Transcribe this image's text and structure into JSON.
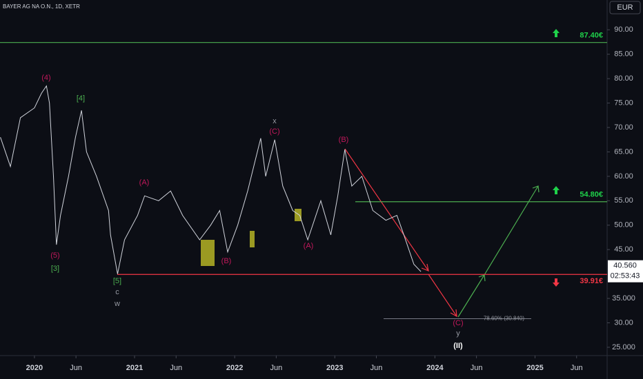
{
  "chart_data": {
    "type": "line",
    "title": "BAYER AG NA O.N., 1D, XETR",
    "currency": "EUR",
    "x": [
      2019.66,
      2019.76,
      2019.86,
      2020.0,
      2020.07,
      2020.12,
      2020.15,
      2020.19,
      2020.22,
      2020.26,
      2020.34,
      2020.41,
      2020.47,
      2020.52,
      2020.62,
      2020.74,
      2020.76,
      2020.83,
      2020.9,
      2021.03,
      2021.1,
      2021.24,
      2021.36,
      2021.48,
      2021.65,
      2021.76,
      2021.85,
      2021.93,
      2022.03,
      2022.13,
      2022.26,
      2022.31,
      2022.4,
      2022.48,
      2022.58,
      2022.65,
      2022.73,
      2022.86,
      2022.96,
      2023.03,
      2023.1,
      2023.17,
      2023.27,
      2023.38,
      2023.51,
      2023.62,
      2023.69,
      2023.79,
      2023.86
    ],
    "series": [
      {
        "color": "#d1d4dc",
        "values": [
          68,
          62,
          72,
          74,
          77,
          78.5,
          75,
          60,
          46,
          52,
          60,
          68,
          73.5,
          65,
          60,
          53,
          48,
          40,
          47,
          52,
          56,
          55,
          57,
          52,
          47,
          50,
          53,
          44.5,
          50,
          57,
          67.8,
          60,
          67.5,
          58,
          53,
          52,
          47,
          55,
          48,
          56,
          65.5,
          58,
          60,
          53,
          51,
          52,
          48,
          42,
          40.5
        ]
      }
    ],
    "xlim": [
      2019.656,
      2025.72
    ],
    "xticks": [
      2020,
      {
        "value": 2020.415,
        "label": "Jun"
      },
      2021,
      {
        "value": 2021.415,
        "label": "Jun"
      },
      2022,
      {
        "value": 2022.415,
        "label": "Jun"
      },
      2023,
      {
        "value": 2023.415,
        "label": "Jun"
      },
      2024,
      {
        "value": 2024.415,
        "label": "Jun"
      },
      2025,
      {
        "value": 2025.415,
        "label": "Jun"
      }
    ],
    "ylim": [
      23.3,
      96.1
    ],
    "yticks": [
      {
        "value": 90,
        "label": "90.00"
      },
      {
        "value": 85,
        "label": "85.00"
      },
      {
        "value": 80,
        "label": "80.00"
      },
      {
        "value": 75,
        "label": "75.00"
      },
      {
        "value": 70,
        "label": "70.00"
      },
      {
        "value": 65,
        "label": "65.00"
      },
      {
        "value": 60,
        "label": "60.00"
      },
      {
        "value": 55,
        "label": "55.00"
      },
      {
        "value": 50,
        "label": "50.00"
      },
      {
        "value": 45,
        "label": "45.00"
      },
      {
        "value": 35,
        "label": "35.000"
      },
      {
        "value": 30,
        "label": "30.00"
      },
      {
        "value": 25,
        "label": "25.000"
      }
    ],
    "levels": [
      {
        "value": 87.4,
        "label": "87.40€",
        "color": "#4caf50"
      },
      {
        "value": 54.8,
        "label": "54.80€",
        "color": "#4caf50"
      },
      {
        "value": 39.91,
        "label": "39.91€",
        "color": "#f23645"
      }
    ],
    "last_price": {
      "value": 40.56,
      "label": "40.560"
    },
    "countdown": "02:53:43",
    "fib": {
      "value": 30.84,
      "label": "78.60% (30.840)"
    },
    "annotations": [
      "(4)",
      "[4]",
      "(5)",
      "[3]",
      "[5]",
      "c",
      "w",
      "(A)",
      "(B)",
      "x",
      "(C)",
      "(B)",
      "(A)",
      "(C)",
      "y",
      "(II)"
    ]
  }
}
